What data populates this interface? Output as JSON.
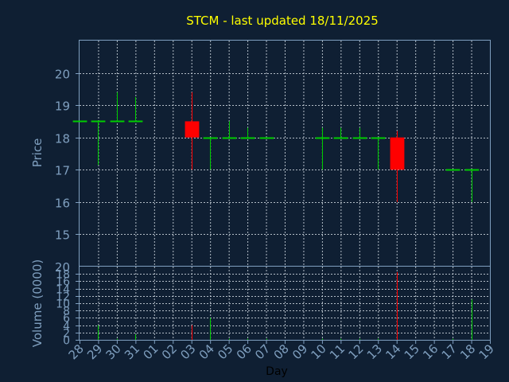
{
  "colors": {
    "background": "#0f1f33",
    "title": "#ffff00",
    "axis_text": "#7f9fbf",
    "up": "#00cc00",
    "down": "#ff0000",
    "grid": "#cfd8e0"
  },
  "chart_data": [
    {
      "type": "candlestick",
      "title": "STCM - last updated 18/11/2025",
      "ylabel": "Price",
      "ylim": [
        14,
        21
      ],
      "yticks": [
        15,
        16,
        17,
        18,
        19,
        20
      ],
      "grid": true,
      "categories": [
        "28",
        "29",
        "30",
        "31",
        "01",
        "02",
        "03",
        "04",
        "05",
        "06",
        "07",
        "08",
        "09",
        "10",
        "11",
        "12",
        "13",
        "14",
        "15",
        "16",
        "17",
        "18",
        "19"
      ],
      "candles": [
        {
          "day": "28",
          "open": 18.5,
          "high": 18.5,
          "low": 18.5,
          "close": 18.5
        },
        {
          "day": "29",
          "open": 18.5,
          "high": 18.5,
          "low": 17.15,
          "close": 18.5
        },
        {
          "day": "30",
          "open": 18.5,
          "high": 19.4,
          "low": 18.5,
          "close": 18.5
        },
        {
          "day": "31",
          "open": 18.5,
          "high": 19.25,
          "low": 18.5,
          "close": 18.5
        },
        {
          "day": "03",
          "open": 18.5,
          "high": 19.4,
          "low": 17.0,
          "close": 18.0
        },
        {
          "day": "04",
          "open": 18.0,
          "high": 18.0,
          "low": 17.0,
          "close": 18.0
        },
        {
          "day": "05",
          "open": 18.0,
          "high": 18.5,
          "low": 18.0,
          "close": 18.0
        },
        {
          "day": "06",
          "open": 18.0,
          "high": 18.3,
          "low": 18.0,
          "close": 18.0
        },
        {
          "day": "07",
          "open": 18.0,
          "high": 18.0,
          "low": 18.0,
          "close": 18.0
        },
        {
          "day": "10",
          "open": 18.0,
          "high": 18.3,
          "low": 17.0,
          "close": 18.0
        },
        {
          "day": "11",
          "open": 18.0,
          "high": 18.3,
          "low": 18.0,
          "close": 18.0
        },
        {
          "day": "12",
          "open": 18.0,
          "high": 18.3,
          "low": 18.0,
          "close": 18.0
        },
        {
          "day": "13",
          "open": 18.0,
          "high": 18.0,
          "low": 17.0,
          "close": 18.0
        },
        {
          "day": "14",
          "open": 18.0,
          "high": 18.2,
          "low": 16.0,
          "close": 17.0
        },
        {
          "day": "17",
          "open": 17.0,
          "high": 17.0,
          "low": 17.0,
          "close": 17.0
        },
        {
          "day": "18",
          "open": 17.0,
          "high": 17.0,
          "low": 16.0,
          "close": 17.0
        }
      ]
    },
    {
      "type": "bar",
      "xlabel": "Day",
      "ylabel": "Volume (0000)",
      "ylim": [
        0,
        20
      ],
      "yticks": [
        0,
        2,
        4,
        6,
        8,
        10,
        12,
        14,
        16,
        18,
        20
      ],
      "grid": true,
      "categories": [
        "28",
        "29",
        "30",
        "31",
        "01",
        "02",
        "03",
        "04",
        "05",
        "06",
        "07",
        "08",
        "09",
        "10",
        "11",
        "12",
        "13",
        "14",
        "15",
        "16",
        "17",
        "18",
        "19"
      ],
      "bars": [
        {
          "day": "29",
          "value": 4,
          "direction": "up"
        },
        {
          "day": "30",
          "value": 0.3,
          "direction": "up"
        },
        {
          "day": "31",
          "value": 1.5,
          "direction": "up"
        },
        {
          "day": "03",
          "value": 4,
          "direction": "down"
        },
        {
          "day": "04",
          "value": 6,
          "direction": "up"
        },
        {
          "day": "05",
          "value": 0.3,
          "direction": "up"
        },
        {
          "day": "06",
          "value": 0.3,
          "direction": "up"
        },
        {
          "day": "07",
          "value": 0.3,
          "direction": "up"
        },
        {
          "day": "10",
          "value": 0.3,
          "direction": "up"
        },
        {
          "day": "11",
          "value": 0.3,
          "direction": "up"
        },
        {
          "day": "12",
          "value": 0.3,
          "direction": "up"
        },
        {
          "day": "13",
          "value": 0.3,
          "direction": "up"
        },
        {
          "day": "14",
          "value": 18.5,
          "direction": "down"
        },
        {
          "day": "17",
          "value": 0.3,
          "direction": "up"
        },
        {
          "day": "18",
          "value": 11,
          "direction": "up"
        }
      ]
    }
  ]
}
